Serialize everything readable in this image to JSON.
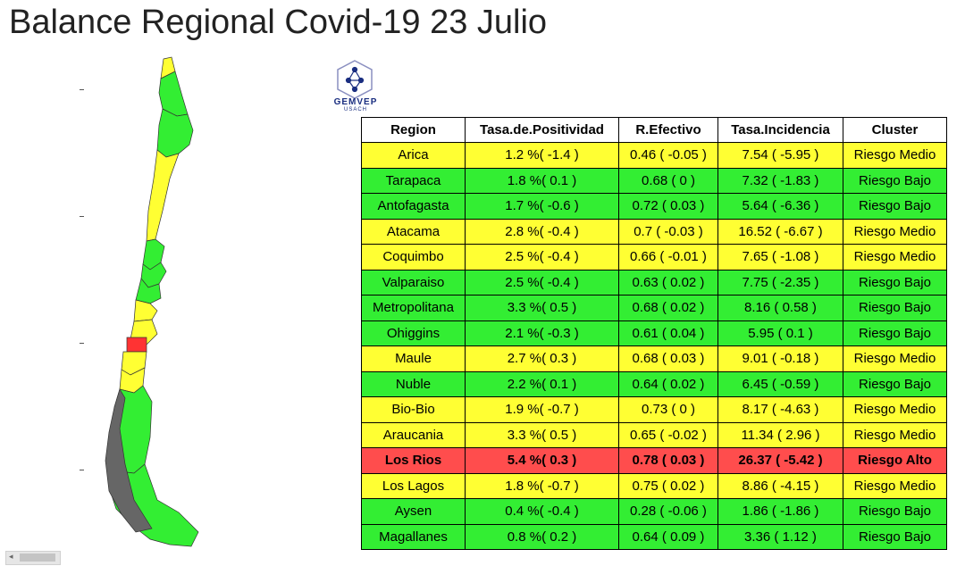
{
  "title": "Balance Regional Covid-19 23 Julio",
  "logo": {
    "text": "GEMVEP",
    "subtext": "USACH",
    "icon": "network-hexagon-icon"
  },
  "colors": {
    "medio": "#ffff33",
    "bajo": "#33ee33",
    "alto": "#ff4d4d"
  },
  "table": {
    "headers": [
      "Region",
      "Tasa.de.Positividad",
      "R.Efectivo",
      "Tasa.Incidencia",
      "Cluster"
    ],
    "rows": [
      {
        "region": "Arica",
        "positividad": "1.2 %( -1.4 )",
        "r": "0.46 ( -0.05 )",
        "incidencia": "7.54 ( -5.95 )",
        "cluster": "Riesgo Medio",
        "level": "medio"
      },
      {
        "region": "Tarapaca",
        "positividad": "1.8 %( 0.1 )",
        "r": "0.68 ( 0 )",
        "incidencia": "7.32 ( -1.83 )",
        "cluster": "Riesgo Bajo",
        "level": "bajo"
      },
      {
        "region": "Antofagasta",
        "positividad": "1.7 %( -0.6 )",
        "r": "0.72 ( 0.03 )",
        "incidencia": "5.64 ( -6.36 )",
        "cluster": "Riesgo Bajo",
        "level": "bajo"
      },
      {
        "region": "Atacama",
        "positividad": "2.8 %( -0.4 )",
        "r": "0.7 ( -0.03 )",
        "incidencia": "16.52 ( -6.67 )",
        "cluster": "Riesgo Medio",
        "level": "medio"
      },
      {
        "region": "Coquimbo",
        "positividad": "2.5 %( -0.4 )",
        "r": "0.66 ( -0.01 )",
        "incidencia": "7.65 ( -1.08 )",
        "cluster": "Riesgo Medio",
        "level": "medio"
      },
      {
        "region": "Valparaiso",
        "positividad": "2.5 %( -0.4 )",
        "r": "0.63 ( 0.02 )",
        "incidencia": "7.75 ( -2.35 )",
        "cluster": "Riesgo Bajo",
        "level": "bajo"
      },
      {
        "region": "Metropolitana",
        "positividad": "3.3 %( 0.5 )",
        "r": "0.68 ( 0.02 )",
        "incidencia": "8.16 ( 0.58 )",
        "cluster": "Riesgo Bajo",
        "level": "bajo"
      },
      {
        "region": "Ohiggins",
        "positividad": "2.1 %( -0.3 )",
        "r": "0.61 ( 0.04 )",
        "incidencia": "5.95 ( 0.1 )",
        "cluster": "Riesgo Bajo",
        "level": "bajo"
      },
      {
        "region": "Maule",
        "positividad": "2.7 %( 0.3 )",
        "r": "0.68 ( 0.03 )",
        "incidencia": "9.01 ( -0.18 )",
        "cluster": "Riesgo Medio",
        "level": "medio"
      },
      {
        "region": "Nuble",
        "positividad": "2.2 %( 0.1 )",
        "r": "0.64 ( 0.02 )",
        "incidencia": "6.45 ( -0.59 )",
        "cluster": "Riesgo Bajo",
        "level": "bajo"
      },
      {
        "region": "Bio-Bio",
        "positividad": "1.9 %( -0.7 )",
        "r": "0.73 ( 0 )",
        "incidencia": "8.17 ( -4.63 )",
        "cluster": "Riesgo Medio",
        "level": "medio"
      },
      {
        "region": "Araucania",
        "positividad": "3.3 %( 0.5 )",
        "r": "0.65 ( -0.02 )",
        "incidencia": "11.34 ( 2.96 )",
        "cluster": "Riesgo Medio",
        "level": "medio"
      },
      {
        "region": "Los Rios",
        "positividad": "5.4 %( 0.3 )",
        "r": "0.78 ( 0.03 )",
        "incidencia": "26.37 ( -5.42 )",
        "cluster": "Riesgo Alto",
        "level": "alto"
      },
      {
        "region": "Los Lagos",
        "positividad": "1.8 %( -0.7 )",
        "r": "0.75 ( 0.02 )",
        "incidencia": "8.86 ( -4.15 )",
        "cluster": "Riesgo Medio",
        "level": "medio"
      },
      {
        "region": "Aysen",
        "positividad": "0.4 %( -0.4 )",
        "r": "0.28 ( -0.06 )",
        "incidencia": "1.86 ( -1.86 )",
        "cluster": "Riesgo Bajo",
        "level": "bajo"
      },
      {
        "region": "Magallanes",
        "positividad": "0.8 %( 0.2 )",
        "r": "0.64 ( 0.09 )",
        "incidencia": "3.36 ( 1.12 )",
        "cluster": "Riesgo Bajo",
        "level": "bajo"
      }
    ]
  }
}
